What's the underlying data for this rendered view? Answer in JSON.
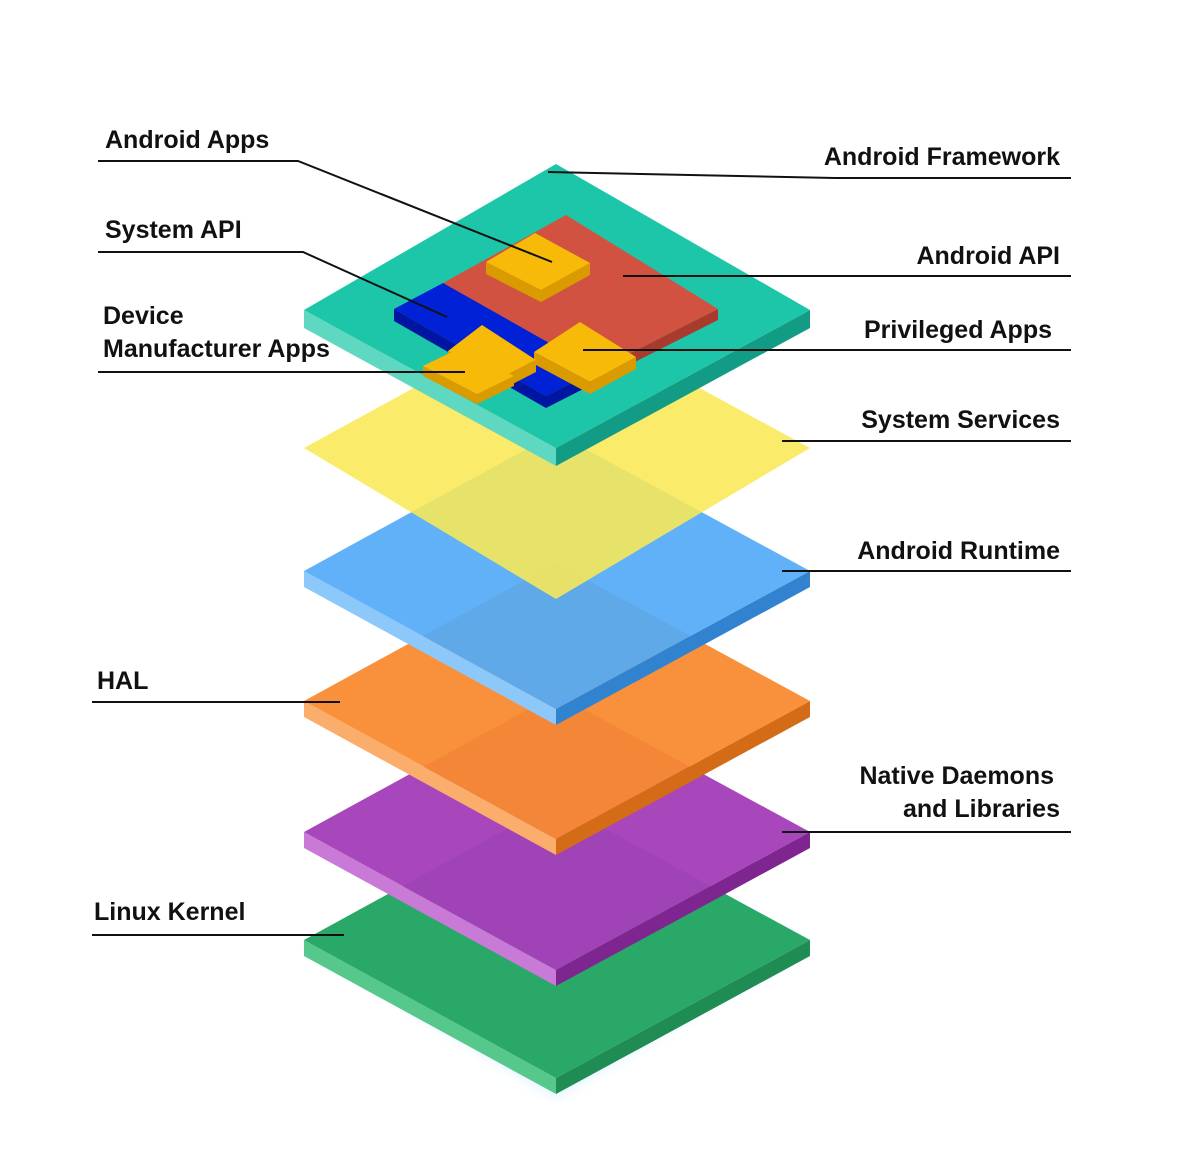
{
  "labels": {
    "android_apps": "Android Apps",
    "system_api": "System API",
    "device_manufacturer_apps": [
      "Device",
      "Manufacturer Apps"
    ],
    "android_framework": "Android Framework",
    "android_api": "Android API",
    "privileged_apps": "Privileged Apps",
    "system_services": "System Services",
    "android_runtime": "Android Runtime",
    "hal": "HAL",
    "native_daemons_and_libraries": [
      "Native Daemons",
      "and Libraries"
    ],
    "linux_kernel": "Linux Kernel"
  },
  "colors": {
    "android_framework": "#1DC6A9",
    "android_api": "#D25242",
    "system_api": "#0021D6",
    "apps": "#F8BA08",
    "system_services": "#F9E857",
    "android_runtime": "#54ABF6",
    "hal": "#F98A30",
    "native_daemons_and_libraries": "#A43EB9",
    "linux_kernel": "#2AA868",
    "leader_line": "#111111"
  }
}
